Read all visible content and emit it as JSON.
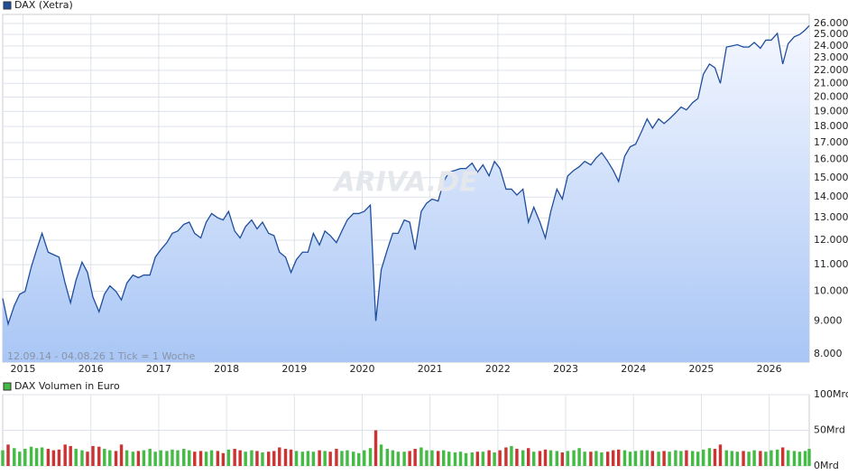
{
  "chart_data": [
    {
      "type": "line",
      "log_scale": true,
      "grid": true,
      "annotation": "12.09.14 - 04.08.26   1 Tick = 1 Woche",
      "watermark": "ARIVA.DE",
      "x": [
        2014.7,
        2014.78,
        2014.87,
        2014.95,
        2015.03,
        2015.12,
        2015.2,
        2015.28,
        2015.37,
        2015.45,
        2015.53,
        2015.62,
        2015.7,
        2015.78,
        2015.87,
        2015.95,
        2016.03,
        2016.12,
        2016.2,
        2016.28,
        2016.37,
        2016.45,
        2016.53,
        2016.62,
        2016.7,
        2016.78,
        2016.87,
        2016.95,
        2017.03,
        2017.12,
        2017.2,
        2017.28,
        2017.37,
        2017.45,
        2017.53,
        2017.62,
        2017.7,
        2017.78,
        2017.87,
        2017.95,
        2018.03,
        2018.12,
        2018.2,
        2018.28,
        2018.37,
        2018.45,
        2018.53,
        2018.62,
        2018.7,
        2018.78,
        2018.87,
        2018.95,
        2019.03,
        2019.12,
        2019.2,
        2019.28,
        2019.37,
        2019.45,
        2019.53,
        2019.62,
        2019.7,
        2019.78,
        2019.87,
        2019.95,
        2020.03,
        2020.12,
        2020.2,
        2020.28,
        2020.37,
        2020.45,
        2020.53,
        2020.62,
        2020.7,
        2020.78,
        2020.87,
        2020.95,
        2021.03,
        2021.12,
        2021.2,
        2021.28,
        2021.37,
        2021.45,
        2021.53,
        2021.62,
        2021.7,
        2021.78,
        2021.87,
        2021.95,
        2022.03,
        2022.12,
        2022.2,
        2022.28,
        2022.37,
        2022.45,
        2022.53,
        2022.62,
        2022.7,
        2022.78,
        2022.87,
        2022.95,
        2023.03,
        2023.12,
        2023.2,
        2023.28,
        2023.37,
        2023.45,
        2023.53,
        2023.62,
        2023.7,
        2023.78,
        2023.87,
        2023.95,
        2024.03,
        2024.12,
        2024.2,
        2024.28,
        2024.37,
        2024.45,
        2024.53,
        2024.62,
        2024.7,
        2024.78,
        2024.87,
        2024.95,
        2025.03,
        2025.12,
        2025.2,
        2025.28,
        2025.37,
        2025.45,
        2025.53,
        2025.62,
        2025.7,
        2025.78,
        2025.87,
        2025.95,
        2026.03,
        2026.12,
        2026.2,
        2026.28,
        2026.37,
        2026.45,
        2026.53,
        2026.59
      ],
      "series": [
        {
          "name": "DAX (Xetra)",
          "color": "#1f4e9c",
          "values": [
            9750,
            8900,
            9500,
            9900,
            10000,
            10900,
            11600,
            12300,
            11500,
            11400,
            11300,
            10300,
            9600,
            10400,
            11100,
            10700,
            9800,
            9300,
            9900,
            10200,
            10000,
            9700,
            10300,
            10600,
            10500,
            10600,
            10600,
            11300,
            11600,
            11900,
            12300,
            12400,
            12700,
            12800,
            12300,
            12100,
            12800,
            13200,
            13000,
            12900,
            13300,
            12400,
            12100,
            12600,
            12900,
            12500,
            12800,
            12300,
            12200,
            11500,
            11300,
            10700,
            11200,
            11500,
            11500,
            12300,
            11800,
            12400,
            12200,
            11900,
            12400,
            12900,
            13200,
            13200,
            13300,
            13600,
            9000,
            10800,
            11600,
            12300,
            12300,
            12900,
            12800,
            11600,
            13300,
            13700,
            13900,
            13800,
            14800,
            15300,
            15400,
            15500,
            15500,
            15800,
            15300,
            15700,
            15100,
            15900,
            15500,
            14400,
            14400,
            14100,
            14400,
            12800,
            13500,
            12800,
            12100,
            13300,
            14400,
            13900,
            15100,
            15400,
            15600,
            15900,
            15700,
            16100,
            16400,
            15900,
            15400,
            14800,
            16200,
            16750,
            16900,
            17700,
            18500,
            17900,
            18500,
            18200,
            18500,
            18900,
            19300,
            19100,
            19600,
            19900,
            21700,
            22500,
            22200,
            21000,
            23900,
            24000,
            24100,
            23900,
            23900,
            24300,
            23800,
            24500,
            24500,
            25100,
            22500,
            24200,
            24800,
            25000,
            25400,
            25800
          ]
        }
      ],
      "xlim": [
        2014.7,
        2026.59
      ],
      "xticks": [
        2015,
        2016,
        2017,
        2018,
        2019,
        2020,
        2021,
        2022,
        2023,
        2024,
        2025,
        2026
      ],
      "ylim": [
        7770,
        26850
      ],
      "yticks": [
        {
          "value": 8000,
          "label": "8.000"
        },
        {
          "value": 9000,
          "label": "9.000"
        },
        {
          "value": 10000,
          "label": "10.000"
        },
        {
          "value": 11000,
          "label": "11.000"
        },
        {
          "value": 12000,
          "label": "12.000"
        },
        {
          "value": 13000,
          "label": "13.000"
        },
        {
          "value": 14000,
          "label": "14.000"
        },
        {
          "value": 15000,
          "label": "15.000"
        },
        {
          "value": 16000,
          "label": "16.000"
        },
        {
          "value": 17000,
          "label": "17.000"
        },
        {
          "value": 18000,
          "label": "18.000"
        },
        {
          "value": 19000,
          "label": "19.000"
        },
        {
          "value": 20000,
          "label": "20.000"
        },
        {
          "value": 21000,
          "label": "21.000"
        },
        {
          "value": 22000,
          "label": "22.000"
        },
        {
          "value": 23000,
          "label": "23.000"
        },
        {
          "value": 24000,
          "label": "24.000"
        },
        {
          "value": 25000,
          "label": "25.000"
        },
        {
          "value": 26000,
          "label": "26.000"
        }
      ]
    },
    {
      "type": "bar",
      "grid": true,
      "down_color": "#cc3333",
      "x": [
        2014.7,
        2014.78,
        2014.87,
        2014.95,
        2015.03,
        2015.12,
        2015.2,
        2015.28,
        2015.37,
        2015.45,
        2015.53,
        2015.62,
        2015.7,
        2015.78,
        2015.87,
        2015.95,
        2016.03,
        2016.12,
        2016.2,
        2016.28,
        2016.37,
        2016.45,
        2016.53,
        2016.62,
        2016.7,
        2016.78,
        2016.87,
        2016.95,
        2017.03,
        2017.12,
        2017.2,
        2017.28,
        2017.37,
        2017.45,
        2017.53,
        2017.62,
        2017.7,
        2017.78,
        2017.87,
        2017.95,
        2018.03,
        2018.12,
        2018.2,
        2018.28,
        2018.37,
        2018.45,
        2018.53,
        2018.62,
        2018.7,
        2018.78,
        2018.87,
        2018.95,
        2019.03,
        2019.12,
        2019.2,
        2019.28,
        2019.37,
        2019.45,
        2019.53,
        2019.62,
        2019.7,
        2019.78,
        2019.87,
        2019.95,
        2020.03,
        2020.12,
        2020.2,
        2020.28,
        2020.37,
        2020.45,
        2020.53,
        2020.62,
        2020.7,
        2020.78,
        2020.87,
        2020.95,
        2021.03,
        2021.12,
        2021.2,
        2021.28,
        2021.37,
        2021.45,
        2021.53,
        2021.62,
        2021.7,
        2021.78,
        2021.87,
        2021.95,
        2022.03,
        2022.12,
        2022.2,
        2022.28,
        2022.37,
        2022.45,
        2022.53,
        2022.62,
        2022.7,
        2022.78,
        2022.87,
        2022.95,
        2023.03,
        2023.12,
        2023.2,
        2023.28,
        2023.37,
        2023.45,
        2023.53,
        2023.62,
        2023.7,
        2023.78,
        2023.87,
        2023.95,
        2024.03,
        2024.12,
        2024.2,
        2024.28,
        2024.37,
        2024.45,
        2024.53,
        2024.62,
        2024.7,
        2024.78,
        2024.87,
        2024.95,
        2025.03,
        2025.12,
        2025.2,
        2025.28,
        2025.37,
        2025.45,
        2025.53,
        2025.62,
        2025.7,
        2025.78,
        2025.87,
        2025.95,
        2026.03,
        2026.12,
        2026.2,
        2026.28,
        2026.37,
        2026.45,
        2026.53,
        2026.59
      ],
      "series": [
        {
          "name": "DAX Volumen in Euro",
          "color": "#44bb44",
          "values": [
            22,
            30,
            25,
            20,
            24,
            27,
            25,
            26,
            24,
            22,
            23,
            30,
            28,
            24,
            22,
            20,
            28,
            27,
            24,
            22,
            21,
            30,
            22,
            20,
            21,
            22,
            24,
            20,
            22,
            21,
            23,
            22,
            24,
            22,
            20,
            21,
            20,
            22,
            21,
            18,
            23,
            24,
            22,
            20,
            22,
            21,
            19,
            20,
            21,
            26,
            24,
            23,
            21,
            20,
            21,
            20,
            22,
            21,
            20,
            24,
            21,
            22,
            20,
            18,
            22,
            25,
            50,
            30,
            24,
            22,
            20,
            20,
            21,
            24,
            26,
            22,
            22,
            21,
            22,
            20,
            19,
            20,
            18,
            19,
            20,
            20,
            22,
            19,
            22,
            26,
            28,
            24,
            22,
            25,
            20,
            21,
            23,
            22,
            21,
            19,
            21,
            22,
            25,
            20,
            20,
            21,
            19,
            20,
            22,
            23,
            22,
            20,
            21,
            22,
            22,
            21,
            20,
            21,
            20,
            22,
            21,
            22,
            21,
            20,
            23,
            25,
            24,
            30,
            22,
            21,
            20,
            21,
            20,
            22,
            21,
            20,
            22,
            23,
            26,
            22,
            21,
            20,
            21,
            24
          ]
        }
      ],
      "xlim": [
        2014.7,
        2026.59
      ],
      "xticks": [
        2015,
        2016,
        2017,
        2018,
        2019,
        2020,
        2021,
        2022,
        2023,
        2024,
        2025,
        2026
      ],
      "ylim": [
        0,
        100
      ],
      "yticks": [
        {
          "value": 0,
          "label": "0Mrd"
        },
        {
          "value": 50,
          "label": "50Mrd"
        },
        {
          "value": 100,
          "label": "100Mrd"
        }
      ]
    }
  ]
}
